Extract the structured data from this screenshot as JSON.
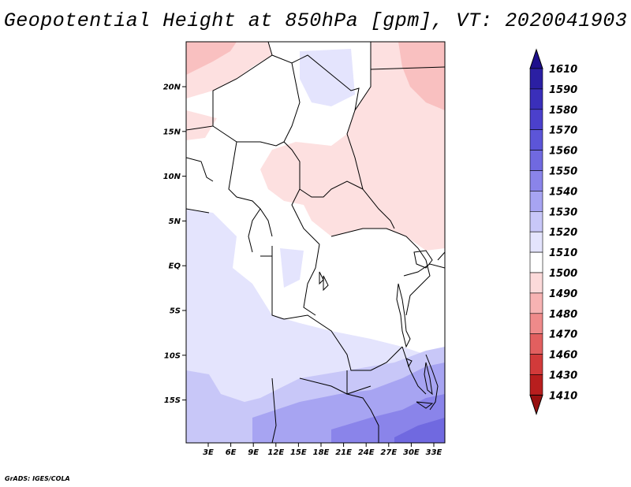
{
  "title": "Geopotential Height at 850hPa [gpm], VT: 2020041903",
  "credit": "GrADS: IGES/COLA",
  "lat_labels": [
    "20N",
    "15N",
    "10N",
    "5N",
    "EQ",
    "5S",
    "10S",
    "15S"
  ],
  "lon_labels": [
    "3E",
    "6E",
    "9E",
    "12E",
    "15E",
    "18E",
    "21E",
    "24E",
    "27E",
    "30E",
    "33E"
  ],
  "colorbar": {
    "labels": [
      "1610",
      "1590",
      "1580",
      "1570",
      "1560",
      "1550",
      "1540",
      "1530",
      "1520",
      "1510",
      "1500",
      "1490",
      "1480",
      "1470",
      "1460",
      "1430",
      "1410"
    ],
    "colors": [
      "#1e0f8c",
      "#2b1fa3",
      "#3a2fba",
      "#4b40cc",
      "#5c55d8",
      "#7069e0",
      "#8a84ea",
      "#a7a4f2",
      "#c8c7f8",
      "#e4e4fd",
      "#ffffff",
      "#fcdada",
      "#f7b3b3",
      "#ef8a8a",
      "#e25f5f",
      "#d23a3a",
      "#b81e1e",
      "#971010"
    ]
  },
  "map": {
    "variable": "Geopotential Height at 850hPa",
    "units": "gpm",
    "valid_time": "2020041903",
    "lon_range": [
      0,
      35
    ],
    "lat_range": [
      -20,
      24
    ]
  }
}
